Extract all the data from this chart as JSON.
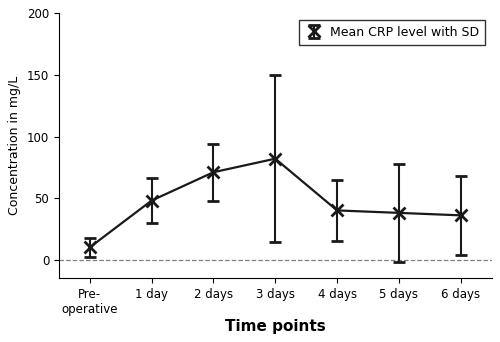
{
  "x_positions": [
    0,
    1,
    2,
    3,
    4,
    5,
    6
  ],
  "x_labels": [
    "Pre-\noperative",
    "1 day",
    "2 days",
    "3 days",
    "4 days",
    "5 days",
    "6 days"
  ],
  "means": [
    10,
    48,
    71,
    82,
    40,
    38,
    36
  ],
  "errors_upper": [
    8,
    18,
    23,
    68,
    25,
    40,
    32
  ],
  "errors_lower": [
    8,
    18,
    23,
    68,
    25,
    40,
    32
  ],
  "ylabel": "Concentration in mg/L",
  "xlabel": "Time points",
  "legend_label": "Mean CRP level with SD",
  "ylim": [
    -15,
    200
  ],
  "yticks": [
    0,
    50,
    100,
    150,
    200
  ],
  "line_color": "#1a1a1a",
  "marker": "x",
  "marker_size": 8,
  "line_width": 1.6,
  "background_color": "#ffffff",
  "dashed_line_y": 0
}
